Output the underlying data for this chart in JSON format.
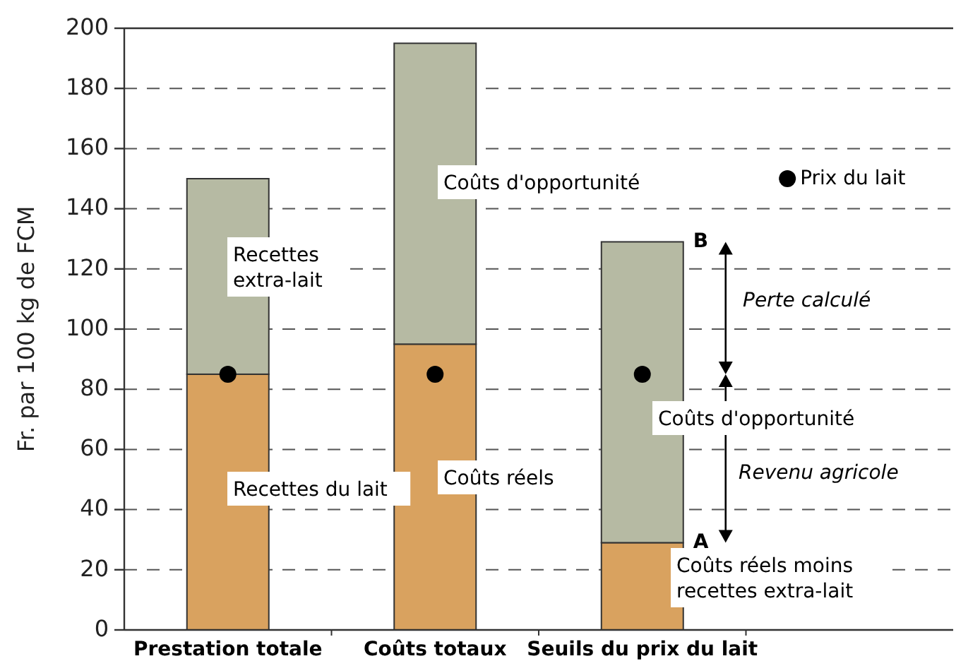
{
  "chart_data": {
    "type": "bar",
    "stacked": true,
    "ylabel": "Fr. par 100 kg de FCM",
    "categories": [
      "Prestation totale",
      "Coûts totaux",
      "Seuils du prix du lait"
    ],
    "series": [
      {
        "color": "#d9a25f",
        "values": [
          85,
          95,
          29
        ]
      },
      {
        "color": "#b6baa3",
        "values": [
          65,
          100,
          100
        ]
      },
      {
        "name": "Prix du lait",
        "type": "scatter",
        "color": "#000000",
        "x": [
          "Prestation totale",
          "Coûts totaux",
          "Seuils du prix du lait"
        ],
        "values": [
          85,
          85,
          85
        ]
      }
    ],
    "ylim": [
      0,
      200
    ],
    "yticks": [
      0,
      20,
      40,
      60,
      80,
      100,
      120,
      140,
      160,
      180,
      200
    ],
    "grid": "y",
    "legend": "top right",
    "marker": "circle",
    "annotations": [
      "Recettes\nextra-lait",
      "Recettes du lait",
      "Coûts d'opportunité",
      "Coûts réels",
      "Coûts d'opportunité",
      "Coûts réels moins\nrecettes extra-lait",
      {
        "text": "B",
        "x": "Seuils du prix du lait",
        "y": 129
      },
      {
        "text": "A",
        "x": "Seuils du prix du lait",
        "y": 29
      },
      "Perte calculé",
      "Revenu agricole"
    ]
  }
}
